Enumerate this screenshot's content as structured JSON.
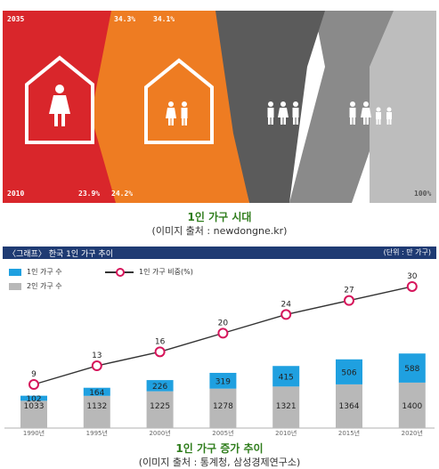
{
  "top_infographic": {
    "top_labels": {
      "year_end": "2035",
      "pct_a_end": "34.3%",
      "pct_b_end": "34.1%"
    },
    "bottom_labels": {
      "year_start": "2010",
      "pct_a_start": "23.9%",
      "pct_b_start": "24.2%",
      "pct_total": "100%"
    },
    "colors": {
      "red": "#d9262b",
      "orange": "#ee7c22",
      "dark_gray": "#5b5b5b",
      "mid_gray": "#8a8a8a",
      "light_gray": "#bdbdbd"
    }
  },
  "caption1": {
    "title": "1인 가구 시대",
    "source": "(이미지 출처 : newdongne.kr)"
  },
  "chart_header": {
    "title": "〈그래프〉 한국 1인 가구 추이",
    "unit": "(단위 : 만 가구)"
  },
  "legend": {
    "one_person": "1인 가구 수",
    "two_person": "2인 가구 수",
    "ratio": "1인 가구 비중(%)"
  },
  "chart_data": {
    "type": "bar",
    "categories": [
      "1990년",
      "1995년",
      "2000년",
      "2005년",
      "2010년",
      "2015년",
      "2020년"
    ],
    "series": [
      {
        "name": "2인 가구 수",
        "values": [
          1033,
          1132,
          1225,
          1278,
          1321,
          1364,
          1400
        ]
      },
      {
        "name": "1인 가구 수",
        "values": [
          102,
          164,
          226,
          319,
          415,
          506,
          588
        ]
      },
      {
        "name": "1인 가구 비중(%)",
        "type": "line",
        "values": [
          9,
          13,
          16,
          20,
          24,
          27,
          30
        ]
      }
    ],
    "colors": {
      "one_person": "#1fa0e0",
      "two_person": "#b8b8b8",
      "line": "#333333",
      "marker": "#d6155b"
    }
  },
  "caption2": {
    "title": "1인 가구 증가 추이",
    "source": "(이미지 출처 : 통계청, 삼성경제연구소)"
  }
}
